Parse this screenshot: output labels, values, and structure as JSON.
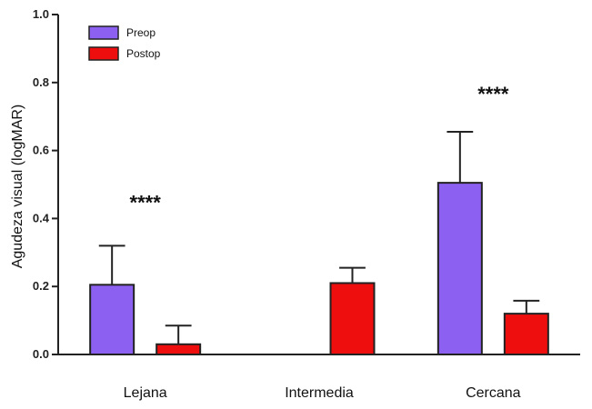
{
  "chart_data": {
    "type": "bar",
    "title": "",
    "xlabel": "",
    "ylabel": "Agudeza visual (logMAR)",
    "ylim": [
      0.0,
      1.0
    ],
    "yticks": [
      "0.0",
      "0.2",
      "0.4",
      "0.6",
      "0.8",
      "1.0"
    ],
    "categories": [
      "Lejana",
      "Intermedia",
      "Cercana"
    ],
    "series": [
      {
        "name": "Preop",
        "color": "#8c60f0",
        "values": [
          0.205,
          null,
          0.505
        ],
        "errors": [
          0.115,
          null,
          0.15
        ]
      },
      {
        "name": "Postop",
        "color": "#ee0e0e",
        "values": [
          0.03,
          0.21,
          0.12
        ],
        "errors": [
          0.055,
          0.045,
          0.038
        ]
      }
    ],
    "annotations": [
      {
        "category": "Lejana",
        "text": "****",
        "y": 0.45
      },
      {
        "category": "Cercana",
        "text": "****",
        "y": 0.77
      }
    ],
    "legend_position": "top-left"
  }
}
